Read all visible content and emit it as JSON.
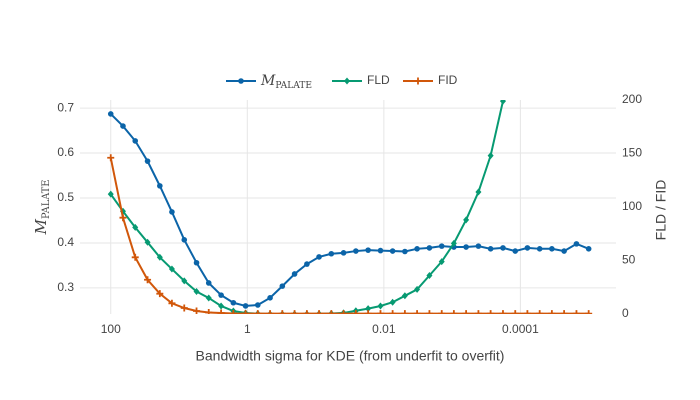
{
  "chart_data": {
    "type": "line",
    "xlabel": "Bandwidth sigma for KDE (from underfit to overfit)",
    "ylabel": "M_PALATE",
    "y2label": "FLD / FID",
    "x": [
      100,
      66.2,
      43.8,
      28.9,
      19.1,
      12.7,
      8.38,
      5.54,
      3.67,
      2.42,
      1.6,
      1.06,
      0.702,
      0.464,
      0.307,
      0.203,
      0.134,
      0.0889,
      0.0588,
      0.0389,
      0.0257,
      0.017,
      0.0112,
      0.00744,
      0.00492,
      0.00326,
      0.00215,
      0.00142,
      0.000943,
      0.000624,
      0.000412,
      0.000273,
      0.00018,
      0.000119,
      7.9e-05,
      5.22e-05,
      3.46e-05,
      2.29e-05,
      1.51e-05,
      1e-05
    ],
    "xscale": "log",
    "xlim": [
      282,
      3.98e-06
    ],
    "xticks": [
      100,
      1,
      0.01,
      0.0001
    ],
    "ylim": [
      0.242,
      0.718
    ],
    "yticks": [
      0.3,
      0.4,
      0.5,
      0.6,
      0.7
    ],
    "y2lim": [
      0,
      200
    ],
    "y2ticks": [
      0,
      50,
      100,
      150,
      200
    ],
    "grid": true,
    "legend": "top",
    "series": [
      {
        "name": "M_PALATE",
        "color": "#0b64a8",
        "marker": "circle",
        "axis": "y",
        "values": [
          0.687,
          0.66,
          0.627,
          0.582,
          0.527,
          0.469,
          0.407,
          0.356,
          0.311,
          0.284,
          0.267,
          0.26,
          0.262,
          0.278,
          0.304,
          0.331,
          0.353,
          0.369,
          0.376,
          0.378,
          0.382,
          0.384,
          0.383,
          0.382,
          0.381,
          0.387,
          0.389,
          0.393,
          0.391,
          0.391,
          0.393,
          0.387,
          0.389,
          0.382,
          0.389,
          0.387,
          0.387,
          0.382,
          0.398,
          0.387
        ]
      },
      {
        "name": "FLD",
        "color": "#079a72",
        "marker": "diamond",
        "axis": "y2",
        "values": [
          112,
          96,
          81,
          67,
          53,
          42,
          31,
          21,
          15,
          7.5,
          2.8,
          0.9,
          0.3,
          0,
          0,
          0,
          0,
          0.2,
          0.5,
          1,
          3,
          5,
          7.5,
          11,
          17,
          23,
          36,
          49,
          66,
          88,
          114,
          148,
          199,
          null,
          null,
          null,
          null,
          null,
          null,
          null
        ]
      },
      {
        "name": "FID",
        "color": "#d1570a",
        "marker": "cross",
        "axis": "y2",
        "values": [
          146,
          90,
          53,
          32,
          19,
          10,
          5.6,
          2.8,
          1.4,
          0.9,
          0.5,
          0.4,
          0.3,
          0.3,
          0.3,
          0.3,
          0.3,
          0.3,
          0.3,
          0.3,
          0.3,
          0.3,
          0.3,
          0.3,
          0.3,
          0.3,
          0.3,
          0.3,
          0.3,
          0.3,
          0.3,
          0.3,
          0.3,
          0.3,
          0.3,
          0.3,
          0.3,
          0.3,
          0.3,
          0.3
        ]
      }
    ]
  }
}
